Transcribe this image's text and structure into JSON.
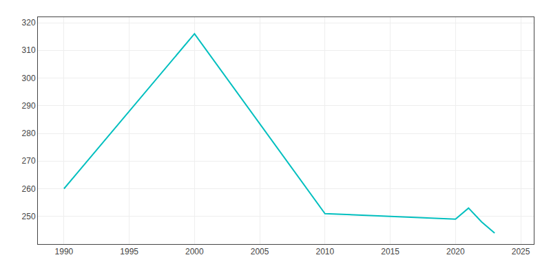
{
  "chart_data": {
    "type": "line",
    "x": [
      1990,
      2000,
      2010,
      2020,
      2021,
      2022,
      2023
    ],
    "values": [
      260,
      316,
      251,
      249,
      253,
      248,
      244
    ],
    "color": "#00BFBF",
    "xlim": [
      1988,
      2026
    ],
    "xticks": [
      1990,
      1995,
      2000,
      2005,
      2010,
      2015,
      2020,
      2025
    ],
    "ylim": [
      240,
      322
    ],
    "yticks": [
      250,
      260,
      270,
      280,
      290,
      300,
      310,
      320
    ],
    "grid": true
  }
}
